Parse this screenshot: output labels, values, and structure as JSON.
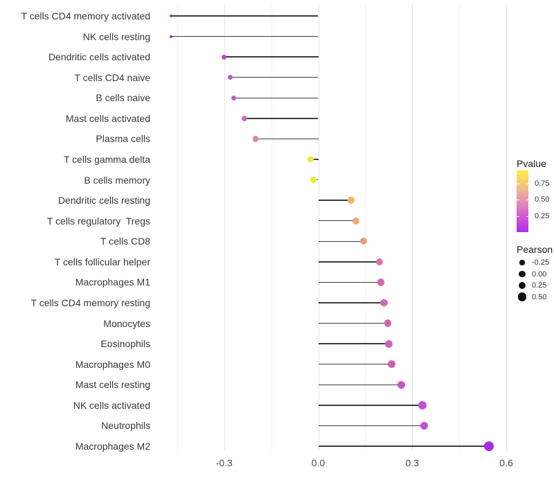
{
  "chart_data": {
    "type": "lollipop",
    "orientation": "horizontal",
    "title": "",
    "xlabel": "",
    "ylabel": "",
    "x_ticks": [
      "-0.3",
      "0.0",
      "0.3",
      "0.6"
    ],
    "x_tick_values": [
      -0.3,
      0.0,
      0.3,
      0.6
    ],
    "grid_minor_values": [
      -0.45,
      -0.15,
      0.15,
      0.45
    ],
    "xlim": [
      -0.49,
      0.63
    ],
    "baseline": 0.0,
    "grid": "vertical-only",
    "rows": [
      {
        "label": "T cells CD4 memory activated",
        "pearson": -0.47,
        "pvalue_approx": 0.01,
        "color": "#9B26DF",
        "radius": 2.0
      },
      {
        "label": "NK cells resting",
        "pearson": -0.47,
        "pvalue_approx": 0.01,
        "color": "#9B26DF",
        "radius": 2.0
      },
      {
        "label": "Dendritic cells activated",
        "pearson": -0.3,
        "pvalue_approx": 0.15,
        "color": "#B44CC9",
        "radius": 3.4
      },
      {
        "label": "T cells CD4 naive",
        "pearson": -0.28,
        "pvalue_approx": 0.18,
        "color": "#BB54C6",
        "radius": 3.6
      },
      {
        "label": "B cells naive",
        "pearson": -0.27,
        "pvalue_approx": 0.2,
        "color": "#C05EC0",
        "radius": 3.7
      },
      {
        "label": "Mast cells activated",
        "pearson": -0.235,
        "pvalue_approx": 0.26,
        "color": "#CB70B3",
        "radius": 3.9
      },
      {
        "label": "Plasma cells",
        "pearson": -0.2,
        "pvalue_approx": 0.35,
        "color": "#D687A6",
        "radius": 4.1
      },
      {
        "label": "T cells gamma delta",
        "pearson": -0.025,
        "pvalue_approx": 0.92,
        "color": "#F0E832",
        "radius": 4.4
      },
      {
        "label": "B cells memory",
        "pearson": -0.015,
        "pvalue_approx": 0.92,
        "color": "#F0E832",
        "radius": 4.4
      },
      {
        "label": "Dendritic cells resting",
        "pearson": 0.105,
        "pvalue_approx": 0.7,
        "color": "#F0B269",
        "radius": 4.8
      },
      {
        "label": "T cells regulatory  Tregs",
        "pearson": 0.12,
        "pvalue_approx": 0.66,
        "color": "#EEAB71",
        "radius": 4.9
      },
      {
        "label": "T cells CD8",
        "pearson": 0.145,
        "pvalue_approx": 0.6,
        "color": "#EC9E78",
        "radius": 5.0
      },
      {
        "label": "T cells follicular helper",
        "pearson": 0.195,
        "pvalue_approx": 0.32,
        "color": "#DB70A5",
        "radius": 5.2
      },
      {
        "label": "Macrophages M1",
        "pearson": 0.2,
        "pvalue_approx": 0.29,
        "color": "#D868AA",
        "radius": 5.2
      },
      {
        "label": "T cells CD4 memory resting",
        "pearson": 0.21,
        "pvalue_approx": 0.27,
        "color": "#D562AF",
        "radius": 5.3
      },
      {
        "label": "Monocytes",
        "pearson": 0.222,
        "pvalue_approx": 0.26,
        "color": "#D462B1",
        "radius": 5.3
      },
      {
        "label": "Eosinophils",
        "pearson": 0.225,
        "pvalue_approx": 0.26,
        "color": "#D361B2",
        "radius": 5.4
      },
      {
        "label": "Macrophages M0",
        "pearson": 0.234,
        "pvalue_approx": 0.24,
        "color": "#D05BB7",
        "radius": 5.5
      },
      {
        "label": "Mast cells resting",
        "pearson": 0.265,
        "pvalue_approx": 0.2,
        "color": "#CB51C1",
        "radius": 5.6
      },
      {
        "label": "NK cells activated",
        "pearson": 0.333,
        "pvalue_approx": 0.12,
        "color": "#C24EDA",
        "radius": 5.9
      },
      {
        "label": "Neutrophils",
        "pearson": 0.338,
        "pvalue_approx": 0.12,
        "color": "#C24EDA",
        "radius": 5.9
      },
      {
        "label": "Macrophages M2",
        "pearson": 0.545,
        "pvalue_approx": 0.04,
        "color": "#AA28E8",
        "radius": 6.9
      }
    ],
    "legend": {
      "pvalue": {
        "title": "Pvalue",
        "ticks": [
          "0.75",
          "0.50",
          "0.25"
        ],
        "range": [
          0.0,
          0.95
        ],
        "gradient_stops": [
          "#B42BEC",
          "#D157D1",
          "#E392B5",
          "#F3C581",
          "#F9EE3F"
        ],
        "position": "right"
      },
      "pearson": {
        "title": "Pearson",
        "entries": [
          {
            "label": "-0.25",
            "radius": 3.6
          },
          {
            "label": "0.00",
            "radius": 4.7
          },
          {
            "label": "0.25",
            "radius": 5.4
          },
          {
            "label": "0.50",
            "radius": 6.1
          }
        ],
        "dot_color": "#111111",
        "position": "right"
      }
    }
  }
}
